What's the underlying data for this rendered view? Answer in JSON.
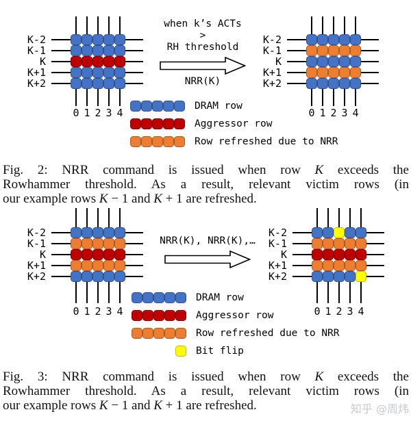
{
  "colors": {
    "blue": {
      "fill": "#4472C4",
      "border": "#2F528F"
    },
    "red": {
      "fill": "#C00000",
      "border": "#7E0101"
    },
    "orange": {
      "fill": "#ED7D31",
      "border": "#AE5A21"
    },
    "yellow": {
      "fill": "#FFFF00",
      "border": "#C0C000"
    },
    "line": "#000000",
    "watermark": "#c6c9cf"
  },
  "fig2": {
    "left_grid": {
      "row_labels": [
        "K-2",
        "K-1",
        "K",
        "K+1",
        "K+2"
      ],
      "col_labels": [
        "0",
        "1",
        "2",
        "3",
        "4"
      ],
      "rows": [
        [
          "blue",
          "blue",
          "blue",
          "blue",
          "blue"
        ],
        [
          "blue",
          "blue",
          "blue",
          "blue",
          "blue"
        ],
        [
          "red",
          "red",
          "red",
          "red",
          "red"
        ],
        [
          "blue",
          "blue",
          "blue",
          "blue",
          "blue"
        ],
        [
          "blue",
          "blue",
          "blue",
          "blue",
          "blue"
        ]
      ]
    },
    "transition": {
      "condition_line1": "when k’s ACTs",
      "condition_line2": ">",
      "condition_line3": "RH threshold",
      "command": "NRR(K)"
    },
    "right_grid": {
      "row_labels": [
        "K-2",
        "K-1",
        "K",
        "K+1",
        "K+2"
      ],
      "col_labels": [
        "0",
        "1",
        "2",
        "3",
        "4"
      ],
      "rows": [
        [
          "blue",
          "blue",
          "blue",
          "blue",
          "blue"
        ],
        [
          "orange",
          "orange",
          "orange",
          "orange",
          "orange"
        ],
        [
          "blue",
          "blue",
          "blue",
          "blue",
          "blue"
        ],
        [
          "orange",
          "orange",
          "orange",
          "orange",
          "orange"
        ],
        [
          "blue",
          "blue",
          "blue",
          "blue",
          "blue"
        ]
      ]
    },
    "legend": [
      {
        "cells": [
          "blue",
          "blue",
          "blue",
          "blue",
          "blue"
        ],
        "label": "DRAM row"
      },
      {
        "cells": [
          "red",
          "red",
          "red",
          "red",
          "red"
        ],
        "label": "Aggressor row"
      },
      {
        "cells": [
          "orange",
          "orange",
          "orange",
          "orange",
          "orange"
        ],
        "label": "Row refreshed due to NRR"
      }
    ],
    "caption": {
      "lines": [
        {
          "segments": [
            {
              "t": "Fig. 2: NRR command is issued when row "
            },
            {
              "t": "K",
              "math": true
            },
            {
              "t": " exceeds the"
            }
          ]
        },
        {
          "segments": [
            {
              "t": "Rowhammer threshold. As a result, relevant victim rows (in"
            }
          ]
        },
        {
          "segments": [
            {
              "t": "our example rows "
            },
            {
              "t": "K",
              "math": true
            },
            {
              "t": " − 1 and "
            },
            {
              "t": "K",
              "math": true
            },
            {
              "t": " + 1 are refreshed."
            }
          ]
        }
      ]
    }
  },
  "fig3": {
    "left_grid": {
      "row_labels": [
        "K-2",
        "K-1",
        "K",
        "K+1",
        "K+2"
      ],
      "col_labels": [
        "0",
        "1",
        "2",
        "3",
        "4"
      ],
      "rows": [
        [
          "blue",
          "blue",
          "blue",
          "blue",
          "blue"
        ],
        [
          "orange",
          "orange",
          "orange",
          "orange",
          "orange"
        ],
        [
          "red",
          "red",
          "red",
          "red",
          "red"
        ],
        [
          "orange",
          "orange",
          "orange",
          "orange",
          "orange"
        ],
        [
          "blue",
          "blue",
          "blue",
          "blue",
          "blue"
        ]
      ]
    },
    "transition": {
      "command_sequence": "NRR(K), NRR(K),…"
    },
    "right_grid": {
      "row_labels": [
        "K-2",
        "K-1",
        "K",
        "K+1",
        "K+2"
      ],
      "col_labels": [
        "0",
        "1",
        "2",
        "3",
        "4"
      ],
      "rows": [
        [
          "blue",
          "blue",
          "yellow",
          "blue",
          "blue"
        ],
        [
          "orange",
          "orange",
          "orange",
          "orange",
          "orange"
        ],
        [
          "red",
          "red",
          "red",
          "red",
          "red"
        ],
        [
          "orange",
          "orange",
          "orange",
          "orange",
          "orange"
        ],
        [
          "blue",
          "blue",
          "blue",
          "blue",
          "yellow"
        ]
      ]
    },
    "legend": [
      {
        "cells": [
          "blue",
          "blue",
          "blue",
          "blue",
          "blue"
        ],
        "label": "DRAM row"
      },
      {
        "cells": [
          "red",
          "red",
          "red",
          "red",
          "red"
        ],
        "label": "Aggressor row"
      },
      {
        "cells": [
          "orange",
          "orange",
          "orange",
          "orange",
          "orange"
        ],
        "label": "Row refreshed due to NRR"
      },
      {
        "cells": [
          "yellow"
        ],
        "label": "Bit flip"
      }
    ],
    "caption": {
      "lines": [
        {
          "segments": [
            {
              "t": "Fig. 3: NRR command is issued when row "
            },
            {
              "t": "K",
              "math": true
            },
            {
              "t": " exceeds the"
            }
          ]
        },
        {
          "segments": [
            {
              "t": "Rowhammer threshold. As a result, relevant victim rows (in"
            }
          ]
        },
        {
          "segments": [
            {
              "t": "our example rows "
            },
            {
              "t": "K",
              "math": true
            },
            {
              "t": " − 1 and "
            },
            {
              "t": "K",
              "math": true
            },
            {
              "t": " + 1 are refreshed."
            }
          ]
        }
      ]
    }
  },
  "watermark": "知乎 @周炜"
}
